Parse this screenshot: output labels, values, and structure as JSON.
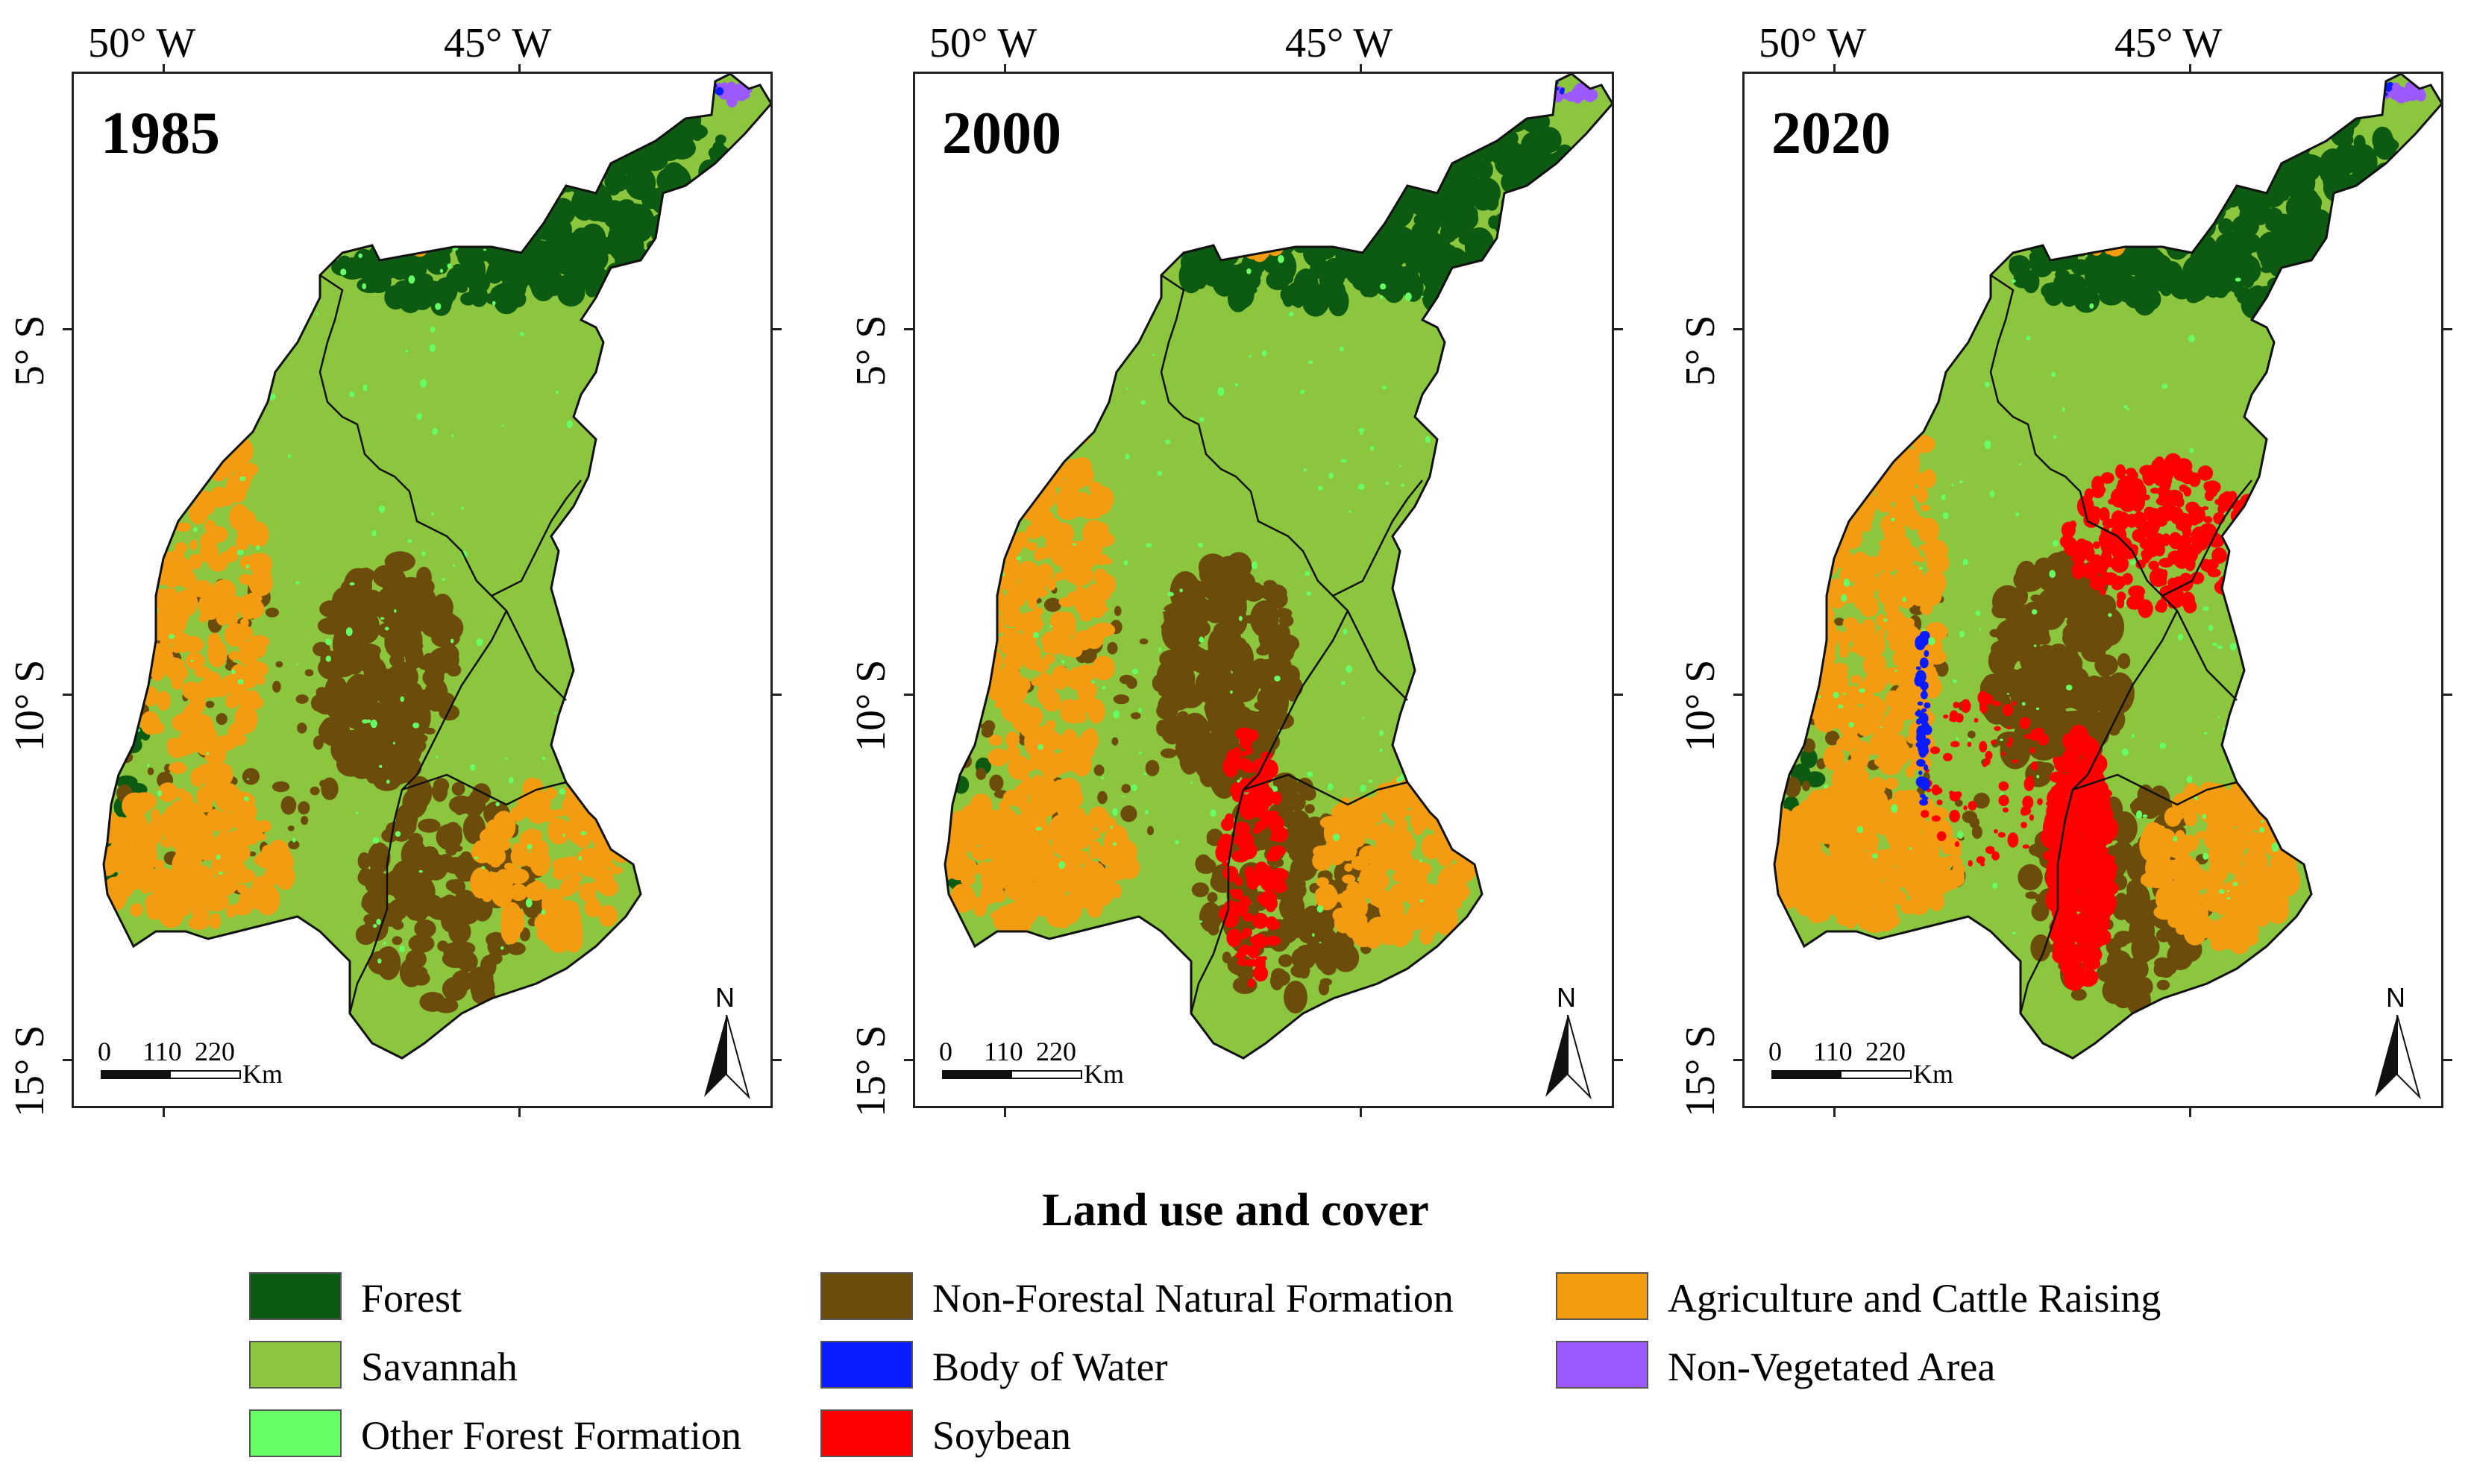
{
  "title": "Land use and cover",
  "maps": [
    {
      "year": "1985",
      "soybean_level": 0,
      "agri_level": 1
    },
    {
      "year": "2000",
      "soybean_level": 1,
      "agri_level": 2
    },
    {
      "year": "2020",
      "soybean_level": 2,
      "agri_level": 3
    }
  ],
  "axes": {
    "longitude_ticks": [
      "50° W",
      "45° W"
    ],
    "latitude_ticks": [
      "5° S",
      "10° S",
      "15° S"
    ]
  },
  "scale": {
    "ticks": [
      "0",
      "110",
      "220"
    ],
    "unit": "Km"
  },
  "north_label": "N",
  "legend": [
    {
      "label": "Forest",
      "color": "#0d5a12"
    },
    {
      "label": "Savannah",
      "color": "#8cc63f"
    },
    {
      "label": "Other Forest Formation",
      "color": "#66ff66"
    },
    {
      "label": "Non-Forestal Natural Formation",
      "color": "#6b4c0a"
    },
    {
      "label": "Body of Water",
      "color": "#0a1cff"
    },
    {
      "label": "Soybean",
      "color": "#ff0000"
    },
    {
      "label": "Agriculture and Cattle Raising",
      "color": "#f39c12"
    },
    {
      "label": "Non-Vegetated Area",
      "color": "#9b59ff"
    }
  ]
}
